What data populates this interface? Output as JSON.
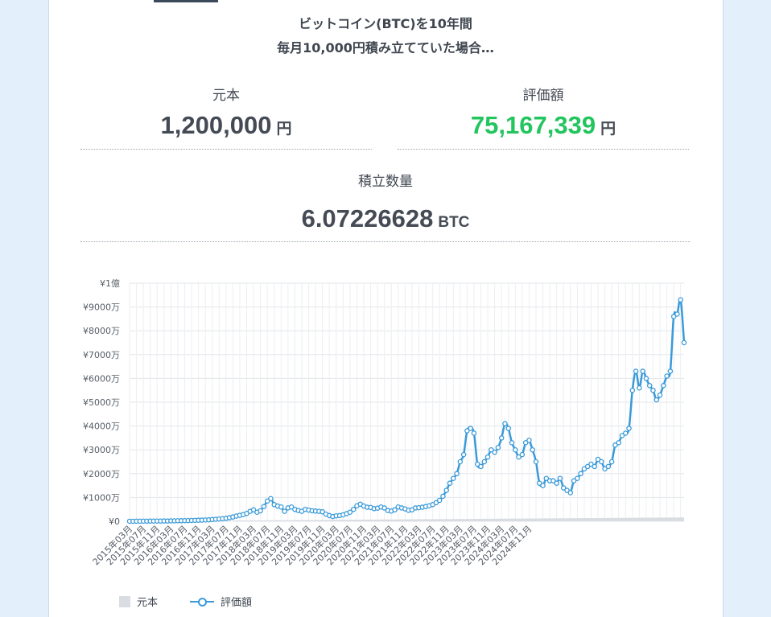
{
  "header": {
    "line1": "ビットコイン(BTC)を10年間",
    "line2": "毎月10,000円積み立てていた場合…"
  },
  "stats": {
    "principal": {
      "label": "元本",
      "value": "1,200,000",
      "unit": "円"
    },
    "valuation": {
      "label": "評価額",
      "value": "75,167,339",
      "unit": "円"
    },
    "quantity": {
      "label": "積立数量",
      "value": "6.07226628",
      "unit": "BTC"
    }
  },
  "colors": {
    "accent_green": "#22c55e",
    "line": "#3a9ad9",
    "principal_fill": "#d9dde2"
  },
  "chart_data": {
    "type": "line",
    "y_ticks": [
      "¥1億",
      "¥9000万",
      "¥8000万",
      "¥7000万",
      "¥6000万",
      "¥5000万",
      "¥4000万",
      "¥3000万",
      "¥2000万",
      "¥1000万",
      "¥0"
    ],
    "ylim": [
      0,
      100000000
    ],
    "x_tick_labels": [
      "2015年03月",
      "2015年07月",
      "2015年11月",
      "2016年03月",
      "2016年07月",
      "2016年11月",
      "2017年03月",
      "2017年07月",
      "2017年11月",
      "2018年03月",
      "2018年07月",
      "2018年11月",
      "2019年03月",
      "2019年07月",
      "2019年11月",
      "2020年03月",
      "2020年07月",
      "2020年11月",
      "2021年03月",
      "2021年07月",
      "2021年11月",
      "2022年03月",
      "2022年07月",
      "2022年11月",
      "2023年03月",
      "2023年07月",
      "2023年11月",
      "2024年03月",
      "2024年07月",
      "2024年11月"
    ],
    "grid": true,
    "legend_position": "bottom-left",
    "series": [
      {
        "name": "元本",
        "type": "area",
        "start": "2015年03月",
        "monthly_step": 10000
      },
      {
        "name": "評価額",
        "type": "line",
        "start": "2015年03月",
        "values_man": [
          1,
          2,
          3,
          4,
          5,
          6,
          7,
          8,
          9,
          10,
          11,
          12,
          15,
          18,
          22,
          24,
          26,
          30,
          35,
          40,
          45,
          50,
          55,
          62,
          75,
          85,
          95,
          110,
          125,
          150,
          180,
          220,
          250,
          280,
          330,
          420,
          480,
          380,
          440,
          620,
          850,
          950,
          700,
          640,
          600,
          420,
          560,
          600,
          500,
          450,
          420,
          500,
          470,
          440,
          430,
          420,
          400,
          300,
          240,
          200,
          230,
          240,
          270,
          320,
          380,
          500,
          650,
          720,
          640,
          590,
          580,
          530,
          550,
          600,
          560,
          450,
          430,
          480,
          600,
          560,
          520,
          460,
          480,
          560,
          570,
          590,
          620,
          650,
          700,
          780,
          880,
          1050,
          1300,
          1600,
          1800,
          2000,
          2500,
          2800,
          3800,
          3900,
          3700,
          2400,
          2300,
          2500,
          2700,
          3000,
          2900,
          3100,
          3500,
          4100,
          3900,
          3300,
          3000,
          2700,
          2800,
          3300,
          3400,
          3000,
          2500,
          1600,
          1500,
          1800,
          1700,
          1700,
          1600,
          1800,
          1400,
          1300,
          1200,
          1700,
          1800,
          2000,
          2200,
          2300,
          2400,
          2300,
          2600,
          2500,
          2200,
          2300,
          2500,
          3200,
          3300,
          3600,
          3700,
          3900,
          5500,
          6300,
          5600,
          6300,
          6000,
          5700,
          5500,
          5100,
          5300,
          5700,
          6100,
          6300,
          8600,
          8700,
          9300,
          7500
        ]
      }
    ]
  }
}
